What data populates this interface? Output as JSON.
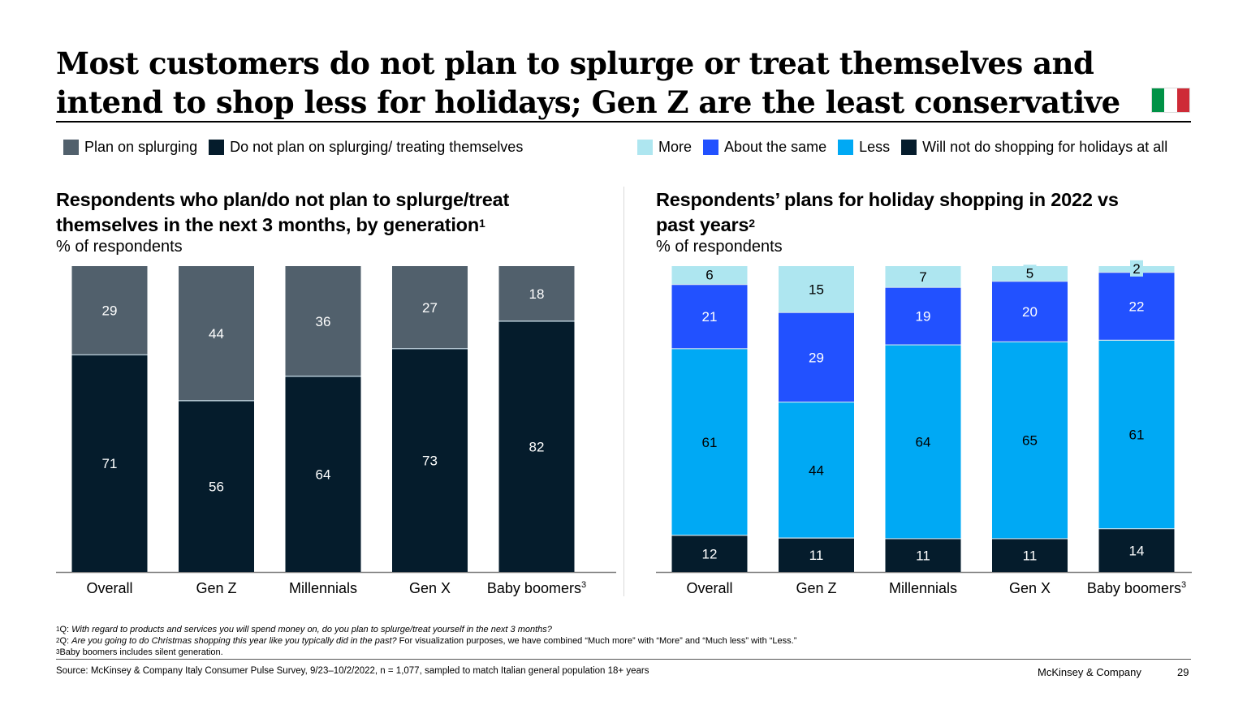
{
  "title": {
    "line1": "Most customers do not plan to splurge or treat themselves and",
    "line2": "intend to shop less for holidays; Gen Z are the least conservative"
  },
  "flag": {
    "name": "italy-flag",
    "colors": [
      "#009246",
      "#ffffff",
      "#ce2b37"
    ]
  },
  "colors": {
    "splurge": "#51606c",
    "no_splurge": "#051c2c",
    "more": "#aee6f0",
    "same": "#2251ff",
    "less": "#00a9f4",
    "none": "#051c2c"
  },
  "legends": {
    "left": [
      {
        "label": "Plan on splurging",
        "color": "#51606c"
      },
      {
        "label": "Do not plan on splurging/ treating themselves",
        "color": "#051c2c"
      }
    ],
    "right": [
      {
        "label": "More",
        "color": "#aee6f0"
      },
      {
        "label": "About the same",
        "color": "#2251ff"
      },
      {
        "label": "Less",
        "color": "#00a9f4"
      },
      {
        "label": "Will not do shopping for holidays at all",
        "color": "#051c2c"
      }
    ]
  },
  "left_panel": {
    "title_line1": "Respondents who plan/do not plan to splurge/treat",
    "title_line2": "themselves in the next 3 months, by generation",
    "title_sup": "1",
    "unit": "% of respondents"
  },
  "right_panel": {
    "title_line1": "Respondents’ plans for holiday shopping in 2022 vs",
    "title_line2": "past years",
    "title_sup": "2",
    "unit": "% of respondents"
  },
  "chart_data": [
    {
      "type": "bar",
      "stacked": true,
      "title": "Respondents who plan/do not plan to splurge/treat themselves in the next 3 months, by generation",
      "ylabel": "% of respondents",
      "xlabel": "",
      "categories": [
        "Overall",
        "Gen Z",
        "Millennials",
        "Gen X",
        "Baby boomers"
      ],
      "category_superscripts": [
        "",
        "",
        "",
        "",
        "3"
      ],
      "ylim": [
        0,
        100
      ],
      "grid": false,
      "legend_position": "top-left",
      "series": [
        {
          "name": "Do not plan on splurging/ treating themselves",
          "color": "#051c2c",
          "label_color": "#ffffff",
          "values": [
            71,
            56,
            64,
            73,
            82
          ]
        },
        {
          "name": "Plan on splurging",
          "color": "#51606c",
          "label_color": "#ffffff",
          "values": [
            29,
            44,
            36,
            27,
            18
          ]
        }
      ]
    },
    {
      "type": "bar",
      "stacked": true,
      "title": "Respondents’ plans for holiday shopping in 2022 vs past years",
      "ylabel": "% of respondents",
      "xlabel": "",
      "categories": [
        "Overall",
        "Gen Z",
        "Millennials",
        "Gen X",
        "Baby boomers"
      ],
      "category_superscripts": [
        "",
        "",
        "",
        "",
        "3"
      ],
      "ylim": [
        0,
        100
      ],
      "grid": false,
      "legend_position": "top-right",
      "series": [
        {
          "name": "Will not do shopping for holidays at all",
          "color": "#051c2c",
          "label_color": "#ffffff",
          "values": [
            12,
            11,
            11,
            11,
            14
          ]
        },
        {
          "name": "Less",
          "color": "#00a9f4",
          "label_color": "#000000",
          "values": [
            61,
            44,
            64,
            65,
            61
          ]
        },
        {
          "name": "About the same",
          "color": "#2251ff",
          "label_color": "#ffffff",
          "values": [
            21,
            29,
            19,
            20,
            22
          ]
        },
        {
          "name": "More",
          "color": "#aee6f0",
          "label_color": "#000000",
          "values": [
            6,
            15,
            7,
            5,
            2
          ]
        }
      ]
    }
  ],
  "footnotes": {
    "fn1_num": "1",
    "fn1_prefix": "Q: ",
    "fn1_italic": "With regard to products and services you will spend money on, do you plan to splurge/treat yourself in the next 3 months?",
    "fn2_num": "2",
    "fn2_prefix": "Q: ",
    "fn2_italic": "Are you going to do Christmas shopping this year like you typically did in the past?",
    "fn2_rest": " For visualization purposes, we have combined “Much more” with “More” and “Much less” with “Less.”",
    "fn3_num": "3",
    "fn3_text": "Baby boomers includes silent generation."
  },
  "source": "Source: McKinsey & Company Italy Consumer Pulse Survey, 9/23–10/2/2022, n = 1,077, sampled to match Italian general population 18+ years",
  "brand": "McKinsey & Company",
  "page_number": "29"
}
